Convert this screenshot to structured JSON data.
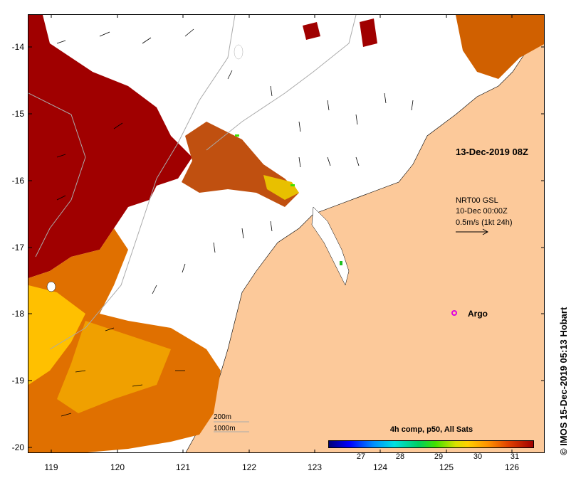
{
  "map": {
    "date_stamp": "13-Dec-2019 08Z",
    "current_legend": [
      "NRT00 GSL",
      "10-Dec 00:00Z",
      "0.5m/s (1kt 24h)"
    ],
    "argo_label": "Argo",
    "credit": "© IMOS 15-Dec-2019 05:13 Hobart",
    "colorbar": {
      "title": "4h comp, p50, All Sats",
      "ticks": [
        "27",
        "28",
        "29",
        "30",
        "31"
      ]
    },
    "scale_labels": [
      "200m",
      "1000m"
    ],
    "y_axis_labels": [
      "-14",
      "-15",
      "-16",
      "-17",
      "-18",
      "-19",
      "-20"
    ],
    "x_axis_labels": [
      "119",
      "120",
      "121",
      "122",
      "123",
      "124",
      "125",
      "126"
    ],
    "colors": {
      "land": "#fcc99a",
      "sst_hot": "#a00000",
      "sst_warm": "#e07000",
      "sst_mid": "#ffc000",
      "argo": "#e000e0"
    }
  }
}
